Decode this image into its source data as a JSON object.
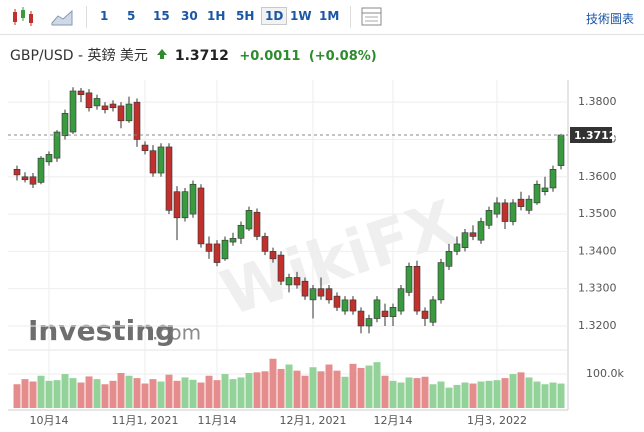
{
  "toolbar": {
    "intervals": [
      "1",
      "5",
      "15",
      "30",
      "1H",
      "5H",
      "1D",
      "1W",
      "1M"
    ],
    "selected": "1D",
    "chart_link": "技術圖表"
  },
  "quote": {
    "symbol": "GBP/USD - 英鎊 美元",
    "price": "1.3712",
    "change": "+0.0011",
    "change_pct": "(+0.08%)"
  },
  "watermark": "WikiFX",
  "logo": {
    "name": "Investing",
    "suffix": ".com"
  },
  "chart_data": {
    "type": "candlestick",
    "categories": [
      null,
      null,
      null,
      null,
      "10月14",
      null,
      null,
      null,
      null,
      null,
      null,
      null,
      null,
      null,
      null,
      null,
      "11月1, 2021",
      null,
      null,
      null,
      null,
      null,
      null,
      null,
      null,
      "11月14",
      null,
      null,
      null,
      null,
      null,
      null,
      null,
      null,
      null,
      null,
      null,
      "12月1, 2021",
      null,
      null,
      null,
      null,
      null,
      null,
      null,
      null,
      null,
      "12月14",
      null,
      null,
      null,
      null,
      null,
      null,
      null,
      null,
      null,
      null,
      null,
      null,
      "1月3, 2022",
      null,
      null,
      null,
      null,
      null,
      null,
      null,
      null
    ],
    "open": [
      1.362,
      1.36,
      1.36,
      1.3585,
      1.364,
      1.365,
      1.371,
      1.372,
      1.383,
      1.3825,
      1.379,
      1.379,
      1.3795,
      1.379,
      1.375,
      1.38,
      1.3685,
      1.367,
      1.361,
      1.368,
      1.356,
      1.349,
      1.35,
      1.357,
      1.342,
      1.342,
      1.338,
      1.3425,
      1.3435,
      1.346,
      1.3505,
      1.344,
      1.34,
      1.339,
      1.331,
      1.333,
      1.332,
      1.327,
      1.33,
      1.33,
      1.328,
      1.324,
      1.327,
      1.324,
      1.32,
      1.322,
      1.324,
      1.3225,
      1.324,
      1.329,
      1.336,
      1.324,
      1.321,
      1.327,
      1.336,
      1.34,
      1.341,
      1.345,
      1.343,
      1.347,
      1.35,
      1.353,
      1.348,
      1.354,
      1.351,
      1.353,
      1.356,
      1.357,
      1.363
    ],
    "high": [
      1.363,
      1.3612,
      1.361,
      1.3655,
      1.3668,
      1.3725,
      1.378,
      1.384,
      1.3838,
      1.3835,
      1.382,
      1.38,
      1.3805,
      1.38,
      1.3815,
      1.381,
      1.3695,
      1.3685,
      1.369,
      1.369,
      1.3575,
      1.357,
      1.359,
      1.358,
      1.344,
      1.343,
      1.344,
      1.345,
      1.348,
      1.352,
      1.3515,
      1.345,
      1.341,
      1.34,
      1.334,
      1.3345,
      1.333,
      1.331,
      1.333,
      1.331,
      1.329,
      1.328,
      1.328,
      1.325,
      1.323,
      1.328,
      1.326,
      1.326,
      1.331,
      1.337,
      1.3375,
      1.325,
      1.328,
      1.338,
      1.342,
      1.344,
      1.346,
      1.347,
      1.349,
      1.352,
      1.3545,
      1.354,
      1.354,
      1.356,
      1.355,
      1.359,
      1.36,
      1.363,
      1.3715
    ],
    "low": [
      1.359,
      1.3585,
      1.357,
      1.358,
      1.363,
      1.364,
      1.37,
      1.3715,
      1.38,
      1.3775,
      1.378,
      1.377,
      1.3775,
      1.373,
      1.3745,
      1.368,
      1.366,
      1.36,
      1.36,
      1.35,
      1.343,
      1.348,
      1.349,
      1.341,
      1.338,
      1.336,
      1.3375,
      1.3415,
      1.342,
      1.3455,
      1.343,
      1.339,
      1.337,
      1.331,
      1.329,
      1.33,
      1.327,
      1.322,
      1.327,
      1.326,
      1.324,
      1.323,
      1.323,
      1.318,
      1.318,
      1.321,
      1.32,
      1.32,
      1.323,
      1.328,
      1.323,
      1.32,
      1.32,
      1.326,
      1.335,
      1.339,
      1.34,
      1.343,
      1.342,
      1.346,
      1.349,
      1.346,
      1.347,
      1.351,
      1.35,
      1.3525,
      1.355,
      1.356,
      1.362
    ],
    "close": [
      1.3605,
      1.3592,
      1.358,
      1.365,
      1.366,
      1.372,
      1.377,
      1.383,
      1.382,
      1.3785,
      1.381,
      1.378,
      1.3785,
      1.375,
      1.3795,
      1.37,
      1.367,
      1.361,
      1.368,
      1.351,
      1.349,
      1.356,
      1.358,
      1.342,
      1.34,
      1.337,
      1.343,
      1.3435,
      1.347,
      1.351,
      1.344,
      1.34,
      1.338,
      1.332,
      1.333,
      1.331,
      1.328,
      1.33,
      1.328,
      1.327,
      1.325,
      1.327,
      1.324,
      1.32,
      1.322,
      1.327,
      1.3225,
      1.325,
      1.33,
      1.336,
      1.324,
      1.322,
      1.327,
      1.337,
      1.34,
      1.342,
      1.345,
      1.344,
      1.348,
      1.351,
      1.353,
      1.348,
      1.353,
      1.352,
      1.354,
      1.358,
      1.357,
      1.362,
      1.3712
    ],
    "volume": [
      70000,
      85000,
      78000,
      95000,
      80000,
      82000,
      100000,
      88000,
      75000,
      93000,
      85000,
      70000,
      80000,
      103000,
      95000,
      88000,
      72000,
      85000,
      78000,
      98000,
      80000,
      90000,
      83000,
      75000,
      95000,
      82000,
      100000,
      85000,
      90000,
      103000,
      105000,
      108000,
      145000,
      115000,
      128000,
      110000,
      95000,
      120000,
      108000,
      128000,
      110000,
      92000,
      130000,
      118000,
      125000,
      135000,
      95000,
      80000,
      75000,
      90000,
      88000,
      92000,
      70000,
      78000,
      60000,
      68000,
      75000,
      72000,
      78000,
      80000,
      82000,
      88000,
      100000,
      105000,
      90000,
      78000,
      70000,
      75000,
      72000
    ],
    "up_color": "#3a9a3f",
    "down_color": "#c0312d",
    "up_volume_color": "#93d39a",
    "down_volume_color": "#e58c8c",
    "ylim": [
      1.3149,
      1.3838
    ],
    "yticks": [
      {
        "value": 1.32,
        "label": "1.3200"
      },
      {
        "value": 1.33,
        "label": "1.3300"
      },
      {
        "value": 1.34,
        "label": "1.3400"
      },
      {
        "value": 1.35,
        "label": "1.3500"
      },
      {
        "value": 1.36,
        "label": "1.3600"
      },
      {
        "value": 1.37,
        "label": "1.3700"
      },
      {
        "value": 1.38,
        "label": "1.3800"
      }
    ],
    "volume_lim": [
      0,
      159000
    ],
    "volume_ticks": [
      {
        "value": 100000,
        "label": "100.0k"
      }
    ],
    "grid": true
  }
}
